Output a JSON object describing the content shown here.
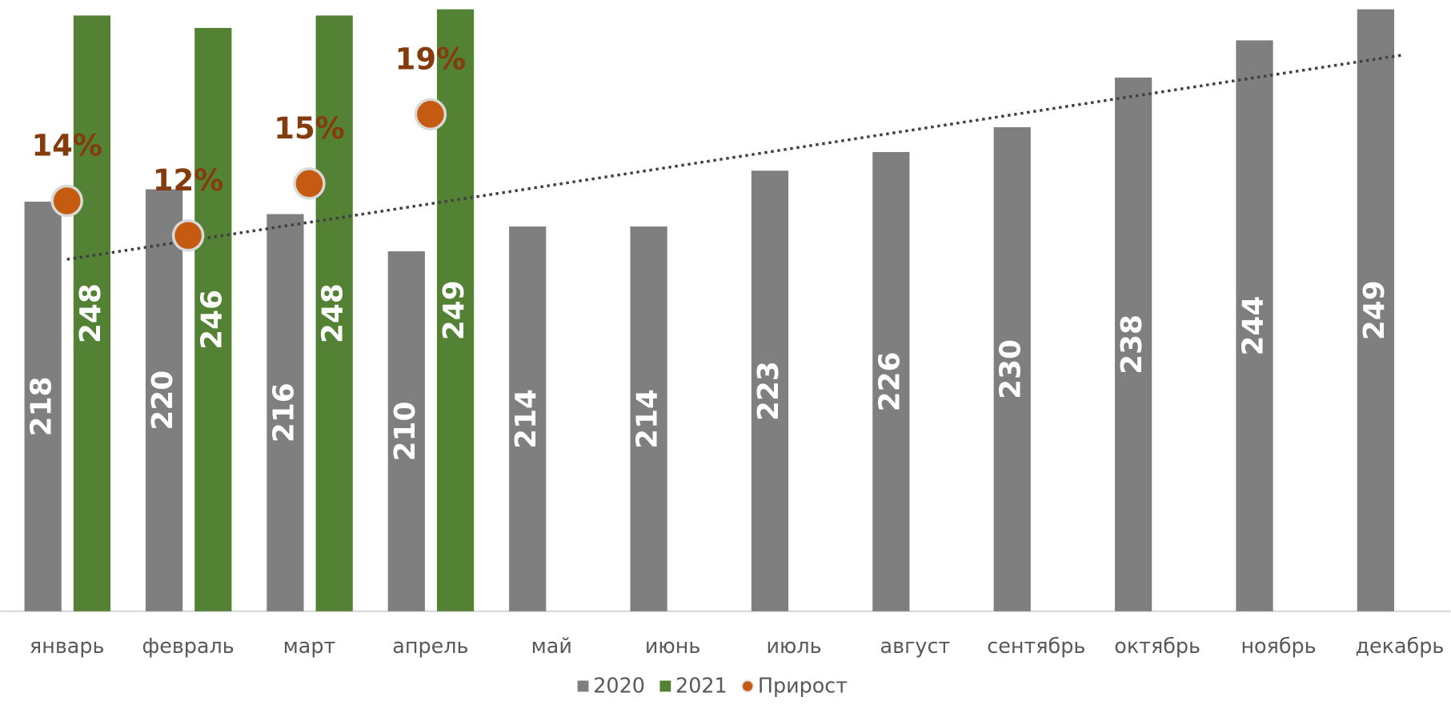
{
  "chart_data": {
    "type": "bar",
    "categories": [
      "январь",
      "февраль",
      "март",
      "апрель",
      "май",
      "июнь",
      "июль",
      "август",
      "сентябрь",
      "октябрь",
      "ноябрь",
      "декабрь"
    ],
    "ylim": [
      152,
      250.5
    ],
    "y2lim": [
      -9.7,
      25.6
    ],
    "series": [
      {
        "name": "2020",
        "color": "#7f7f7f",
        "values": [
          218,
          220,
          216,
          210,
          214,
          214,
          223,
          226,
          230,
          238,
          244,
          249
        ],
        "trendline": "linear"
      },
      {
        "name": "2021",
        "color": "#548235",
        "values": [
          248,
          246,
          248,
          249,
          null,
          null,
          null,
          null,
          null,
          null,
          null,
          null
        ]
      },
      {
        "name": "Прирост",
        "type": "scatter",
        "axis": "y2",
        "color": "#c55a11",
        "values": [
          14,
          12,
          15,
          19,
          null,
          null,
          null,
          null,
          null,
          null,
          null,
          null
        ],
        "value_labels": [
          "14%",
          "12%",
          "15%",
          "19%",
          null,
          null,
          null,
          null,
          null,
          null,
          null,
          null
        ]
      }
    ]
  }
}
